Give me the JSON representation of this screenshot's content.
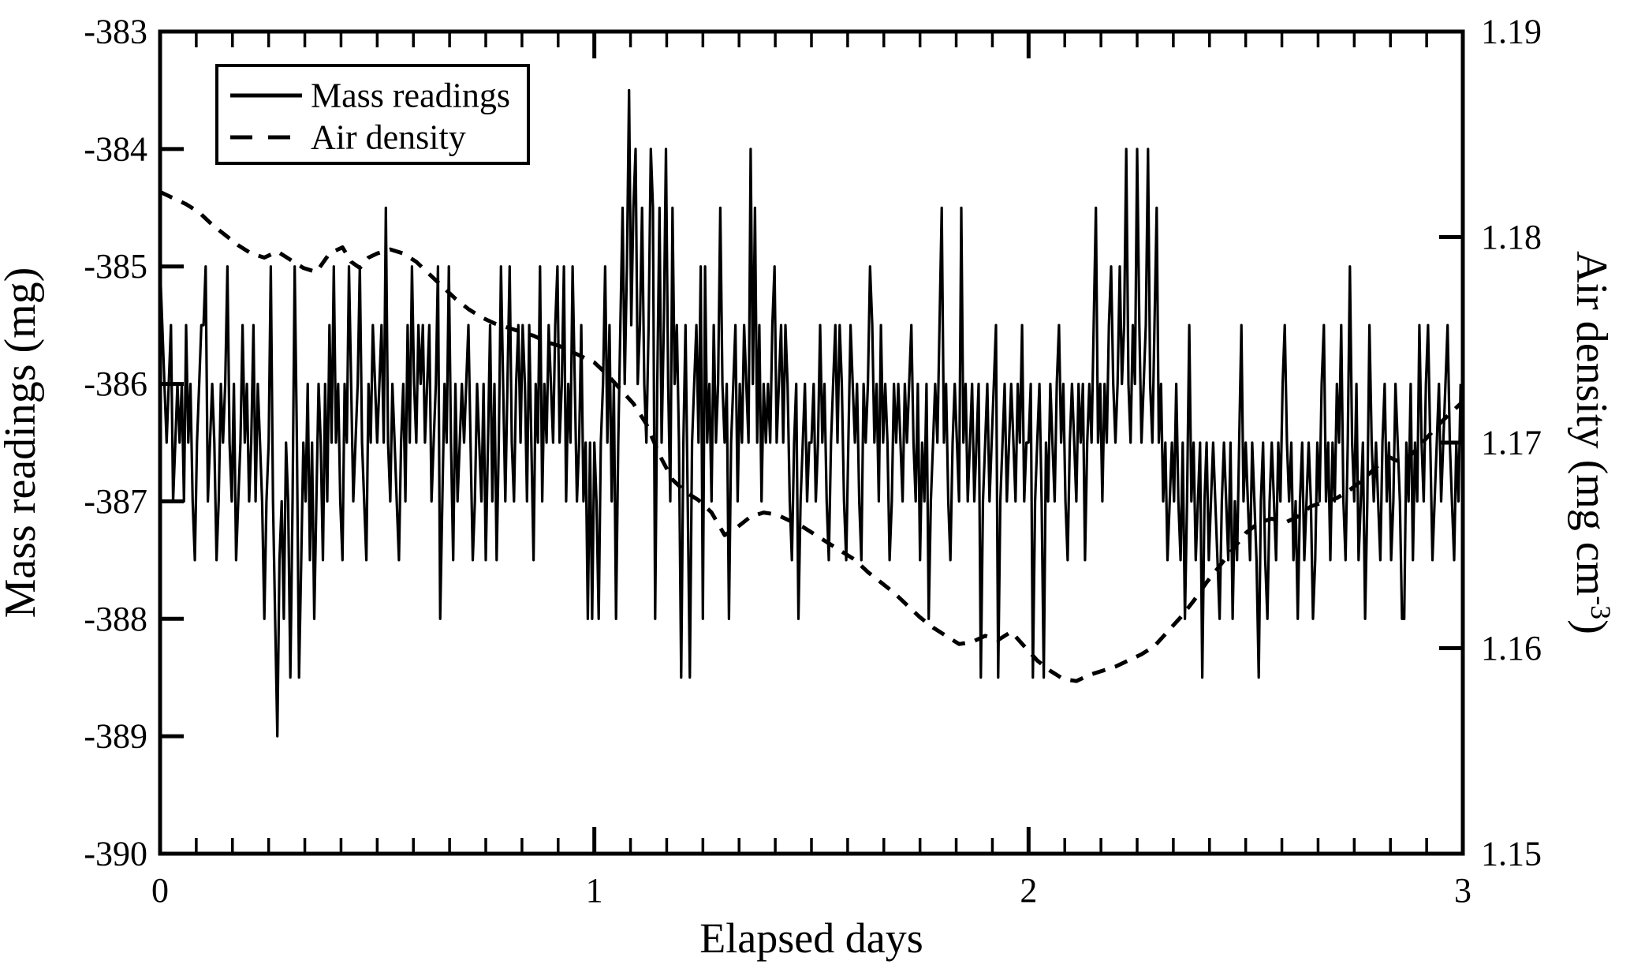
{
  "figure": {
    "background": "#ffffff",
    "stroke_color": "#000000"
  },
  "legend": {
    "items": [
      {
        "label": "Mass readings",
        "style": "solid"
      },
      {
        "label": "Air density",
        "style": "dashed"
      }
    ]
  },
  "axes": {
    "x": {
      "label": "Elapsed days",
      "min": 0,
      "max": 3,
      "major_tick_values": [
        0,
        1,
        2,
        3
      ],
      "tick_labels": [
        "0",
        "1",
        "2",
        "3"
      ],
      "minor_intervals_per_major": 12
    },
    "y_left": {
      "label": "Mass readings (mg)",
      "min": -390,
      "max": -383,
      "tick_values": [
        -383,
        -384,
        -385,
        -386,
        -387,
        -388,
        -389,
        -390
      ],
      "tick_labels": [
        "-383",
        "-384",
        "-385",
        "-386",
        "-387",
        "-388",
        "-389",
        "-390"
      ]
    },
    "y_right": {
      "label_main": "Air density (mg cm",
      "label_superscript": "-3",
      "label_close": ")",
      "min": 1.15,
      "max": 1.19,
      "tick_values": [
        1.19,
        1.18,
        1.17,
        1.16,
        1.15
      ],
      "tick_labels": [
        "1.19",
        "1.18",
        "1.17",
        "1.16",
        "1.15"
      ]
    }
  },
  "chart_data": {
    "type": "line",
    "title": "",
    "xlabel": "Elapsed days",
    "ylabel_left": "Mass readings (mg)",
    "ylabel_right": "Air density (mg cm-3)",
    "x_range": [
      0,
      3
    ],
    "left_axis_range": [
      -390,
      -383
    ],
    "right_axis_range": [
      1.15,
      1.19
    ],
    "grid": false,
    "legend_position": "top-left-inside",
    "series": [
      {
        "name": "Mass readings",
        "axis": "left",
        "style": "solid",
        "x_start": 0,
        "x_step": 0.005,
        "level_map": {
          "0": -389.0,
          "1": -388.5,
          "2": -388.0,
          "3": -387.5,
          "4": -387.0,
          "5": -386.5,
          "6": -386.0,
          "7": -385.5,
          "8": -385.0,
          "9": -384.5,
          "A": -384.0,
          "B": -383.5
        },
        "levels": "876567456564756435677845653465685463457564574654245842034254148513546352465364758564365864568543657656759546543564758657675674568246585364565675346546357463586468546757647536584657657856846586457452525425685746257968B79A679657A926957A64967515741567582856475696562567465765A69574656578567576435624564556457564356757643576564365687564756534656546567546354624565795643565495645645614564567145645654657455614564154654675643565465635657956465786568  67A6576A7567A657956453454643524745345145345432454352435745435431453245435467545342453454235467453546574358546345247545435645346542254635475467534564567543546",
        "levels_note": "each character is one balance reading; decode with level_map (mg)"
      },
      {
        "name": "Air density",
        "axis": "right",
        "style": "dashed",
        "points": [
          [
            0.0,
            1.1822
          ],
          [
            0.03,
            1.1819
          ],
          [
            0.06,
            1.1816
          ],
          [
            0.09,
            1.1812
          ],
          [
            0.12,
            1.1806
          ],
          [
            0.15,
            1.1801
          ],
          [
            0.18,
            1.1796
          ],
          [
            0.21,
            1.1792
          ],
          [
            0.24,
            1.179
          ],
          [
            0.27,
            1.1793
          ],
          [
            0.3,
            1.1789
          ],
          [
            0.33,
            1.1785
          ],
          [
            0.36,
            1.1783
          ],
          [
            0.39,
            1.1792
          ],
          [
            0.42,
            1.1795
          ],
          [
            0.44,
            1.1788
          ],
          [
            0.46,
            1.1785
          ],
          [
            0.48,
            1.179
          ],
          [
            0.5,
            1.1792
          ],
          [
            0.53,
            1.1794
          ],
          [
            0.56,
            1.1792
          ],
          [
            0.59,
            1.1788
          ],
          [
            0.62,
            1.1782
          ],
          [
            0.65,
            1.1776
          ],
          [
            0.68,
            1.177
          ],
          [
            0.71,
            1.1765
          ],
          [
            0.74,
            1.1761
          ],
          [
            0.77,
            1.1758
          ],
          [
            0.8,
            1.1756
          ],
          [
            0.83,
            1.1754
          ],
          [
            0.86,
            1.1752
          ],
          [
            0.89,
            1.1749
          ],
          [
            0.92,
            1.1747
          ],
          [
            0.95,
            1.1744
          ],
          [
            0.98,
            1.1741
          ],
          [
            1.0,
            1.1739
          ],
          [
            1.03,
            1.1733
          ],
          [
            1.06,
            1.1726
          ],
          [
            1.09,
            1.1719
          ],
          [
            1.12,
            1.1709
          ],
          [
            1.15,
            1.1694
          ],
          [
            1.18,
            1.1682
          ],
          [
            1.21,
            1.1676
          ],
          [
            1.24,
            1.1672
          ],
          [
            1.27,
            1.1666
          ],
          [
            1.3,
            1.1655
          ],
          [
            1.33,
            1.1659
          ],
          [
            1.36,
            1.1664
          ],
          [
            1.39,
            1.1666
          ],
          [
            1.42,
            1.1665
          ],
          [
            1.45,
            1.1662
          ],
          [
            1.48,
            1.1659
          ],
          [
            1.51,
            1.1655
          ],
          [
            1.54,
            1.1651
          ],
          [
            1.57,
            1.1647
          ],
          [
            1.6,
            1.1643
          ],
          [
            1.63,
            1.1637
          ],
          [
            1.66,
            1.1632
          ],
          [
            1.69,
            1.1627
          ],
          [
            1.72,
            1.1621
          ],
          [
            1.75,
            1.1615
          ],
          [
            1.78,
            1.161
          ],
          [
            1.81,
            1.1606
          ],
          [
            1.84,
            1.1602
          ],
          [
            1.87,
            1.1603
          ],
          [
            1.9,
            1.1606
          ],
          [
            1.93,
            1.1604
          ],
          [
            1.96,
            1.1608
          ],
          [
            1.99,
            1.1601
          ],
          [
            2.02,
            1.1594
          ],
          [
            2.05,
            1.1589
          ],
          [
            2.08,
            1.1585
          ],
          [
            2.11,
            1.1584
          ],
          [
            2.14,
            1.1587
          ],
          [
            2.17,
            1.1589
          ],
          [
            2.2,
            1.1591
          ],
          [
            2.23,
            1.1594
          ],
          [
            2.26,
            1.1597
          ],
          [
            2.29,
            1.1601
          ],
          [
            2.32,
            1.1608
          ],
          [
            2.35,
            1.1615
          ],
          [
            2.38,
            1.1623
          ],
          [
            2.41,
            1.1632
          ],
          [
            2.44,
            1.164
          ],
          [
            2.47,
            1.1648
          ],
          [
            2.5,
            1.1656
          ],
          [
            2.53,
            1.1661
          ],
          [
            2.56,
            1.1663
          ],
          [
            2.59,
            1.1661
          ],
          [
            2.62,
            1.1664
          ],
          [
            2.65,
            1.1669
          ],
          [
            2.68,
            1.1671
          ],
          [
            2.71,
            1.1673
          ],
          [
            2.74,
            1.1677
          ],
          [
            2.77,
            1.1682
          ],
          [
            2.8,
            1.1688
          ],
          [
            2.83,
            1.1693
          ],
          [
            2.86,
            1.169
          ],
          [
            2.89,
            1.1696
          ],
          [
            2.92,
            1.1703
          ],
          [
            2.95,
            1.171
          ],
          [
            2.98,
            1.1716
          ],
          [
            3.0,
            1.172
          ]
        ]
      }
    ]
  }
}
